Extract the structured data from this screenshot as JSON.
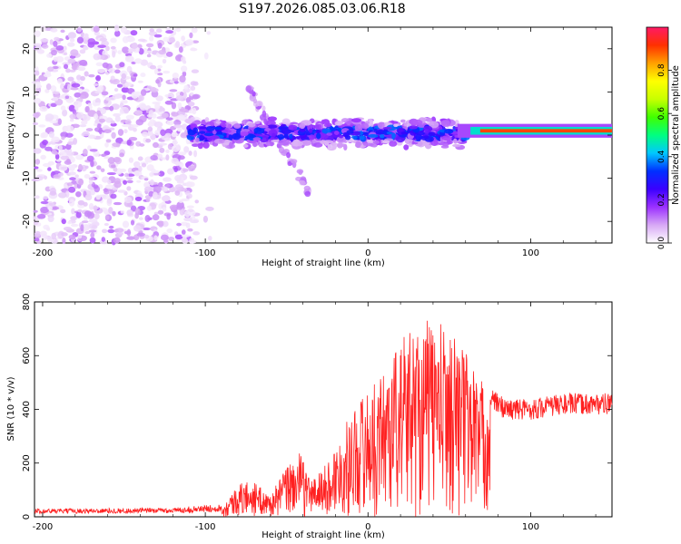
{
  "page": {
    "title": "S197.2026.085.03.06.R18"
  },
  "chart_data": [
    {
      "type": "heatmap",
      "title": "S197.2026.085.03.06.R18",
      "xlabel": "Height of straight line (km)",
      "ylabel": "Frequency (Hz)",
      "xlim": [
        -205,
        150
      ],
      "ylim": [
        -25,
        25
      ],
      "xticks": [
        -200,
        -100,
        0,
        100
      ],
      "yticks": [
        -20,
        -10,
        0,
        10,
        20
      ],
      "colorbar": {
        "label": "Normalized spectral amplitude",
        "range": [
          0,
          1
        ],
        "ticks": [
          "0.0",
          "0.2",
          "0.4",
          "0.6",
          "0.8"
        ],
        "colors": [
          "#ffffff",
          "#d7a8f5",
          "#9b30ff",
          "#3a00ff",
          "#0030ff",
          "#00c8ff",
          "#00ff80",
          "#40ff00",
          "#c8ff00",
          "#ffff00",
          "#ffa000",
          "#ff3000",
          "#ff1a66"
        ]
      },
      "regions": {
        "noise_scatter": {
          "x_range": [
            -205,
            -105
          ],
          "freq_range": [
            -25,
            25
          ],
          "amplitude": [
            0.02,
            0.15
          ]
        },
        "broadband_band": {
          "x_range": [
            -110,
            60
          ],
          "center_freq": 0.5,
          "freq_spread": 3.5,
          "amplitude": [
            0.1,
            0.35
          ]
        },
        "steady_tone": {
          "x_range": [
            55,
            150
          ],
          "freq": 1.0,
          "amplitude": [
            0.6,
            0.9
          ]
        }
      }
    },
    {
      "type": "line",
      "xlabel": "Height of straight line (km)",
      "ylabel": "SNR (10 * v/v)",
      "xlim": [
        -205,
        150
      ],
      "ylim": [
        0,
        800
      ],
      "xticks": [
        -200,
        -100,
        0,
        100
      ],
      "yticks": [
        0,
        200,
        400,
        600,
        800
      ],
      "color": "#ff2020",
      "envelope": [
        [
          -205,
          22
        ],
        [
          -120,
          25
        ],
        [
          -90,
          35
        ],
        [
          -80,
          120
        ],
        [
          -72,
          140
        ],
        [
          -60,
          80
        ],
        [
          -50,
          190
        ],
        [
          -42,
          240
        ],
        [
          -35,
          140
        ],
        [
          -25,
          200
        ],
        [
          -15,
          330
        ],
        [
          -5,
          450
        ],
        [
          5,
          500
        ],
        [
          15,
          620
        ],
        [
          25,
          700
        ],
        [
          35,
          740
        ],
        [
          45,
          720
        ],
        [
          55,
          680
        ],
        [
          65,
          580
        ],
        [
          75,
          440
        ],
        [
          85,
          400
        ],
        [
          100,
          400
        ],
        [
          120,
          420
        ],
        [
          150,
          420
        ]
      ]
    }
  ]
}
